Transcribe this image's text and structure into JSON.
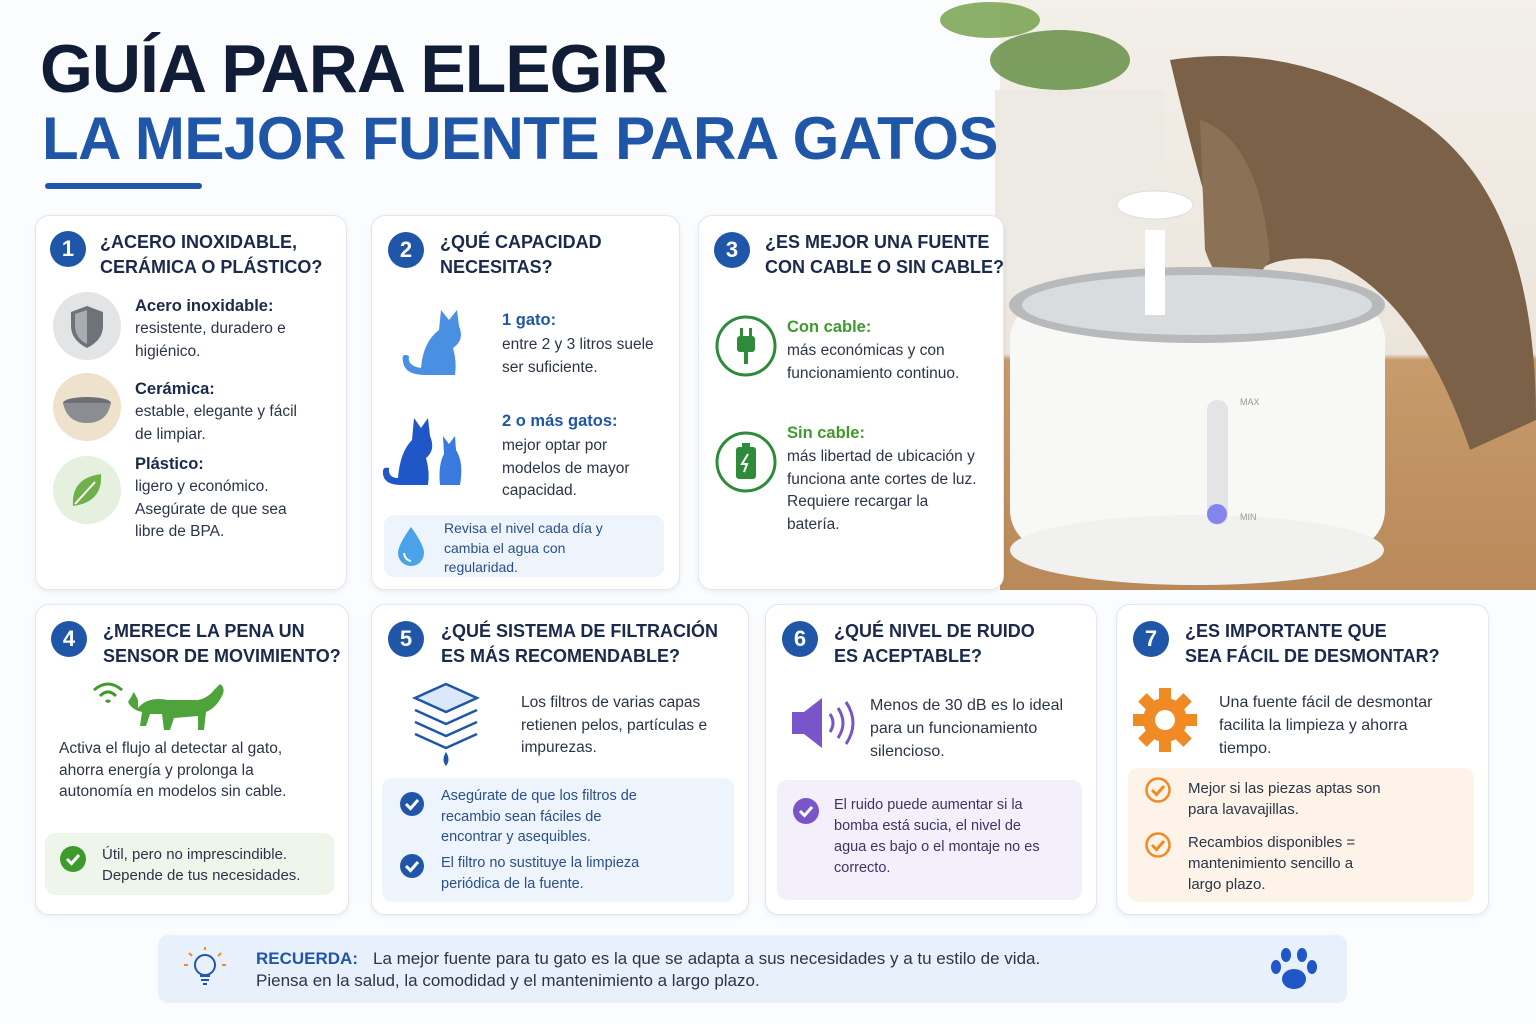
{
  "header": {
    "title_lines": [
      "GUÍA PARA ELEGIR",
      "LA MEJOR FUENTE PARA GATOS"
    ]
  },
  "photo": {
    "max": "MAX",
    "min": "MIN"
  },
  "cards": [
    {
      "number": "1",
      "title": [
        "¿ACERO INOXIDABLE,",
        "CERÁMICA O PLÁSTICO?"
      ],
      "items": [
        {
          "label": "Acero inoxidable:",
          "text": "resistente, duradero e higiénico."
        },
        {
          "label": "Cerámica:",
          "text": "estable, elegante y fácil de limpiar."
        },
        {
          "label": "Plástico:",
          "text": "ligero y económico. Asegúrate de que sea libre de BPA."
        }
      ]
    },
    {
      "number": "2",
      "title": [
        "¿QUÉ CAPACIDAD",
        "NECESITAS?"
      ],
      "items": [
        {
          "label": "1 gato:",
          "text": "entre 2 y 3 litros suele ser suficiente."
        },
        {
          "label": "2 o más gatos:",
          "text": "mejor optar por modelos de mayor capacidad."
        }
      ],
      "note": "Revisa el nivel cada día y cambia el agua con regularidad."
    },
    {
      "number": "3",
      "title": [
        "¿ES MEJOR UNA FUENTE",
        "CON CABLE O SIN CABLE?"
      ],
      "items": [
        {
          "label": "Con cable:",
          "text": "más económicas y con funcionamiento continuo."
        },
        {
          "label": "Sin cable:",
          "text": "más libertad de ubicación y funciona ante cortes de luz. Requiere recargar la batería."
        }
      ]
    },
    {
      "number": "4",
      "title": [
        "¿MERECE LA PENA UN",
        "SENSOR DE MOVIMIENTO?"
      ],
      "text": "Activa el flujo al detectar al gato, ahorra energía y prolonga la autonomía en modelos sin cable.",
      "notes": [
        "Útil, pero no imprescindible. Depende de tus necesidades."
      ]
    },
    {
      "number": "5",
      "title": [
        "¿QUÉ SISTEMA DE FILTRACIÓN",
        "ES MÁS RECOMENDABLE?"
      ],
      "text": "Los filtros de varias capas retienen pelos, partículas e impurezas.",
      "notes": [
        "Asegúrate de que los filtros de recambio sean fáciles de encontrar y asequibles.",
        "El filtro no sustituye la limpieza periódica de la fuente."
      ]
    },
    {
      "number": "6",
      "title": [
        "¿QUÉ NIVEL DE RUIDO",
        "ES ACEPTABLE?"
      ],
      "text": "Menos de 30 dB es lo ideal para un funcionamiento silencioso.",
      "notes": [
        "El ruido puede aumentar si la bomba está sucia, el nivel de agua es bajo o el montaje no es correcto."
      ]
    },
    {
      "number": "7",
      "title": [
        "¿ES IMPORTANTE QUE",
        "SEA FÁCIL DE DESMONTAR?"
      ],
      "text": "Una fuente fácil de desmontar facilita la limpieza y ahorra tiempo.",
      "notes": [
        "Mejor si las piezas aptas son para lavavajillas.",
        "Recambios disponibles = mantenimiento sencillo a largo plazo."
      ]
    }
  ],
  "footer": {
    "label": "RECUERDA:",
    "lines": [
      "La mejor fuente para tu gato es la que se adapta a sus necesidades y a tu estilo de vida.",
      "Piensa en la salud, la comodidad y el mantenimiento a largo plazo."
    ]
  }
}
